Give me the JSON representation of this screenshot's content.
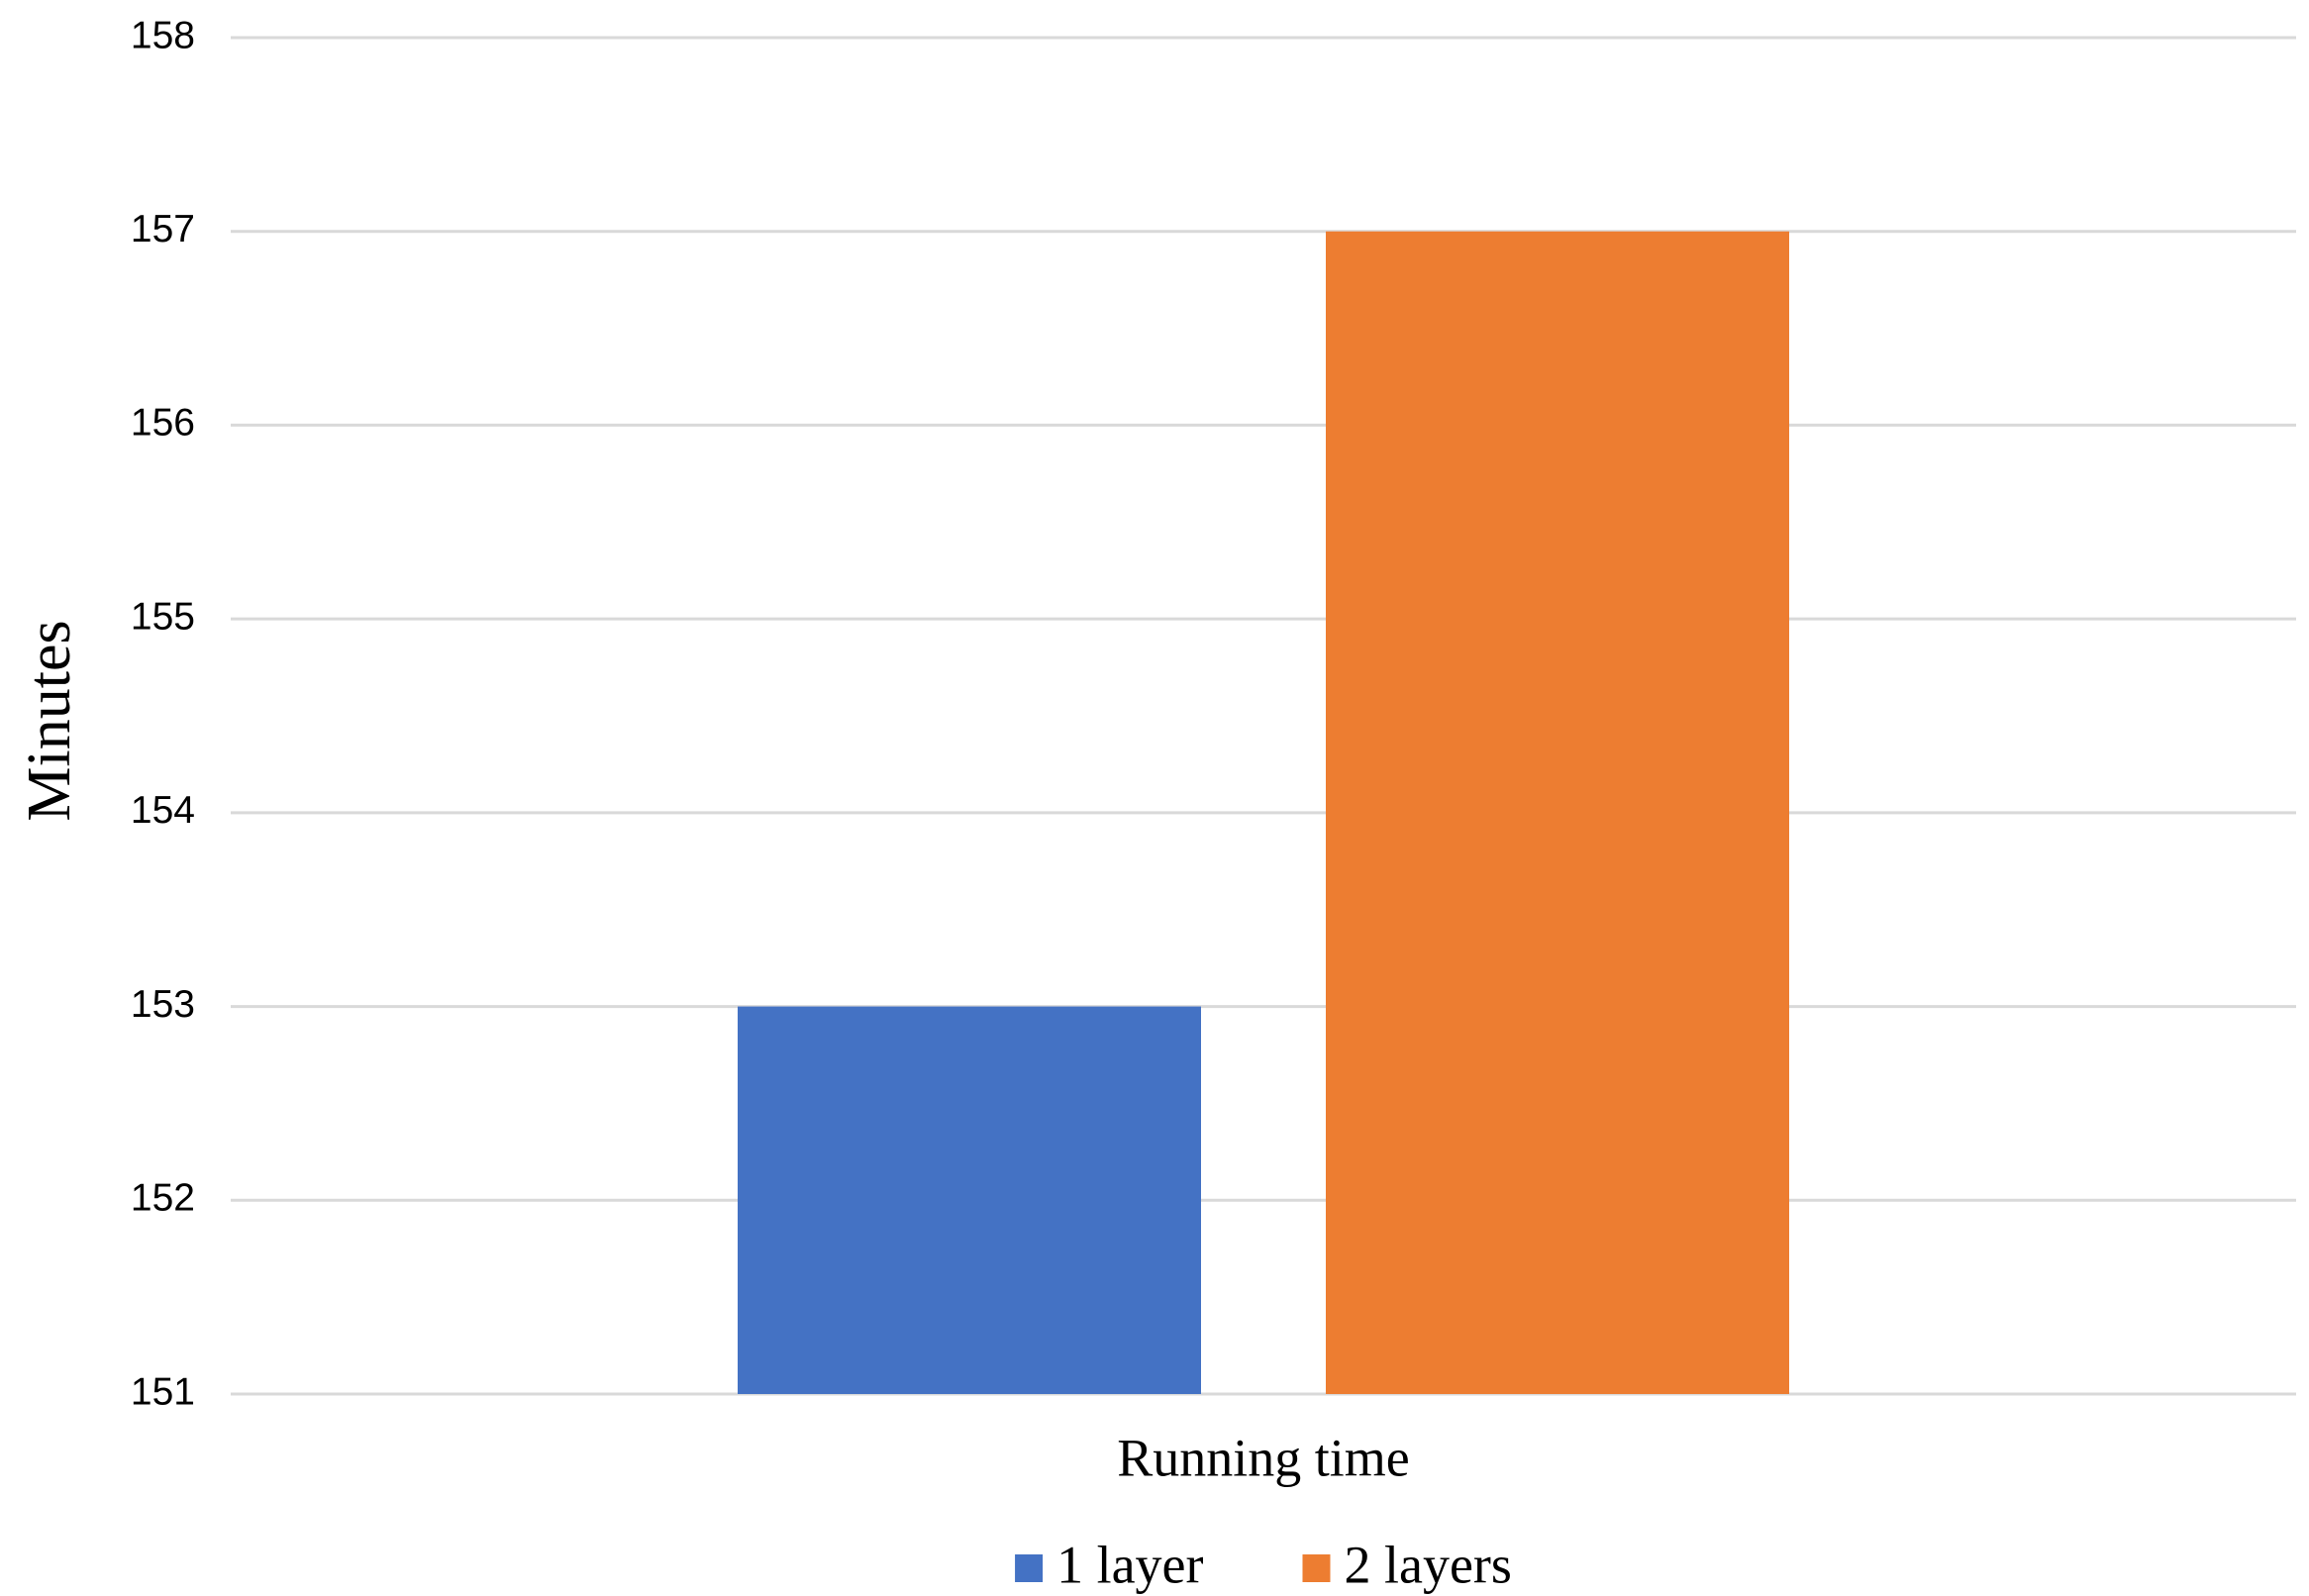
{
  "chart_data": {
    "type": "bar",
    "y_label": "Minutes",
    "categories": [
      "Running time"
    ],
    "series": [
      {
        "name": "1 layer",
        "color": "#4472c4",
        "values": [
          153
        ]
      },
      {
        "name": "2 layers",
        "color": "#ed7d31",
        "values": [
          157
        ]
      }
    ],
    "ylim": [
      151,
      158
    ],
    "yticks": [
      151,
      152,
      153,
      154,
      155,
      156,
      157,
      158
    ],
    "grid": true,
    "legend": "bottom"
  }
}
